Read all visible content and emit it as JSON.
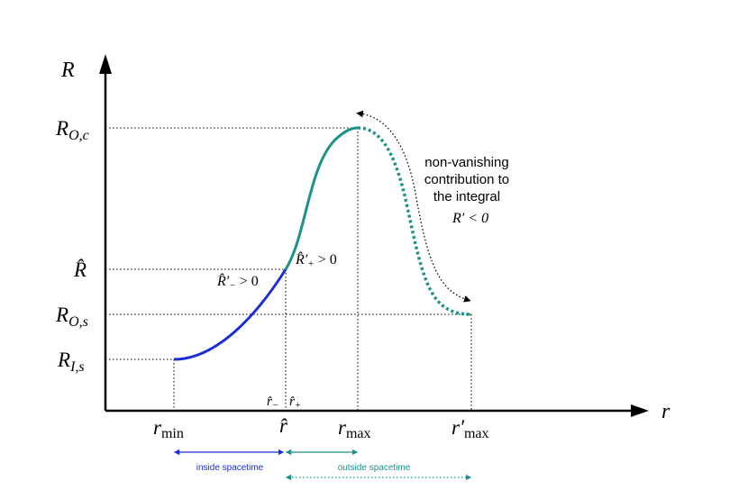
{
  "axes": {
    "y_label": "R",
    "x_label": "r"
  },
  "y_ticks": {
    "r_oc": {
      "main": "R",
      "sub": "O,c"
    },
    "r_hat": {
      "main": "R̂",
      "sub": ""
    },
    "r_os": {
      "main": "R",
      "sub": "O,s"
    },
    "r_is": {
      "main": "R",
      "sub": "I,s"
    }
  },
  "x_ticks": {
    "r_min": {
      "main": "r",
      "sub": "min"
    },
    "r_hat": {
      "main": "r̂",
      "sub": ""
    },
    "r_max": {
      "main": "r",
      "sub": "max"
    },
    "r_max_prime": {
      "main": "r′",
      "sub": "max"
    }
  },
  "labels": {
    "r_hat_minus": "r̂",
    "r_hat_minus_sub": "−",
    "r_hat_plus": "r̂",
    "r_hat_plus_sub": "+",
    "deriv_minus": "R̂′",
    "deriv_minus_sub": "−",
    "deriv_minus_rel": "> 0",
    "deriv_plus": "R̂′",
    "deriv_plus_sub": "+",
    "deriv_plus_rel": "> 0",
    "annotation_line1": "non-vanishing",
    "annotation_line2": "contribution to",
    "annotation_line3": "the integral",
    "deriv_neg": "R′ < 0",
    "inside": "inside spacetime",
    "outside": "outside spacetime"
  },
  "colors": {
    "axis": "#000000",
    "inside_curve": "#1a2fd6",
    "outside_curve": "#1a9189",
    "inside_text": "#1a2fd6",
    "outside_text": "#1a9189",
    "guide": "#000000"
  }
}
